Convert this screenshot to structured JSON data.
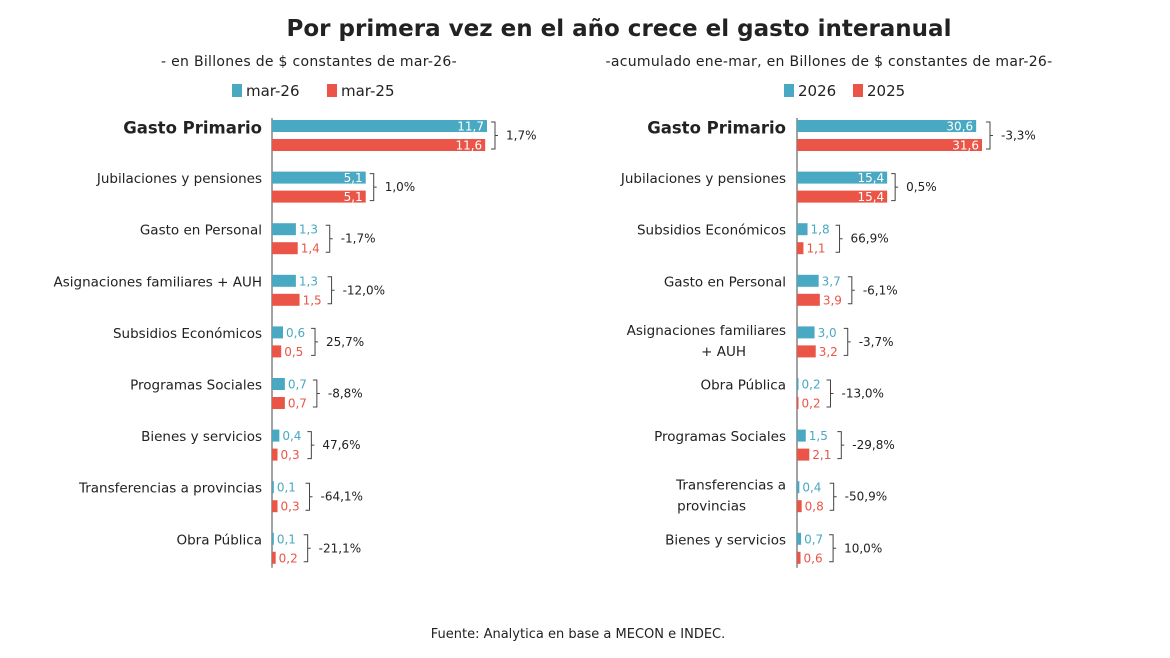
{
  "title": "Por primera vez en el año crece el gasto interanual",
  "colors": {
    "series1": "#4aa9c2",
    "series2": "#ea5548",
    "axis": "#444444",
    "text": "#222222"
  },
  "source": "Fuente: Analytica en base a MECON e INDEC.",
  "chart_data": [
    {
      "type": "bar",
      "orientation": "horizontal",
      "subtitle": "- en Billones de $ constantes de mar-26-",
      "series": [
        {
          "name": "mar-26",
          "values": [
            11.7,
            5.1,
            1.3,
            1.3,
            0.6,
            0.7,
            0.4,
            0.1,
            0.1
          ],
          "labels": [
            "11,7",
            "5,1",
            "1,3",
            "1,3",
            "0,6",
            "0,7",
            "0,4",
            "0,1",
            "0,1"
          ]
        },
        {
          "name": "mar-25",
          "values": [
            11.6,
            5.1,
            1.4,
            1.5,
            0.5,
            0.7,
            0.3,
            0.3,
            0.2
          ],
          "labels": [
            "11,6",
            "5,1",
            "1,4",
            "1,5",
            "0,5",
            "0,7",
            "0,3",
            "0,3",
            "0,2"
          ]
        }
      ],
      "categories": [
        "Gasto Primario",
        "Jubilaciones y pensiones",
        "Gasto en Personal",
        "Asignaciones familiares + AUH",
        "Subsidios Económicos",
        "Programas Sociales",
        "Bienes y servicios",
        "Transferencias a provincias",
        "Obra Pública"
      ],
      "variation": [
        "1,7%",
        "1,0%",
        "-1,7%",
        "-12,0%",
        "25,7%",
        "-8,8%",
        "47,6%",
        "-64,1%",
        "-21,1%"
      ],
      "xlim": [
        0,
        11.7
      ]
    },
    {
      "type": "bar",
      "orientation": "horizontal",
      "subtitle": "-acumulado ene-mar, en Billones de $ constantes de mar-26-",
      "series": [
        {
          "name": "2026",
          "values": [
            30.6,
            15.4,
            1.8,
            3.7,
            3.0,
            0.2,
            1.5,
            0.4,
            0.7
          ],
          "labels": [
            "30,6",
            "15,4",
            "1,8",
            "3,7",
            "3,0",
            "0,2",
            "1,5",
            "0,4",
            "0,7"
          ]
        },
        {
          "name": "2025",
          "values": [
            31.6,
            15.4,
            1.1,
            3.9,
            3.2,
            0.2,
            2.1,
            0.8,
            0.6
          ],
          "labels": [
            "31,6",
            "15,4",
            "1,1",
            "3,9",
            "3,2",
            "0,2",
            "2,1",
            "0,8",
            "0,6"
          ]
        }
      ],
      "categories": [
        "Gasto Primario",
        "Jubilaciones y pensiones",
        "Subsidios Económicos",
        "Gasto en Personal",
        "Asignaciones familiares + AUH",
        "Obra Pública",
        "Programas Sociales",
        "Transferencias a provincias",
        "Bienes y servicios"
      ],
      "variation": [
        "-3,3%",
        "0,5%",
        "66,9%",
        "-6,1%",
        "-3,7%",
        "-13,0%",
        "-29,8%",
        "-50,9%",
        "10,0%"
      ],
      "xlim": [
        0,
        31.6
      ]
    }
  ]
}
